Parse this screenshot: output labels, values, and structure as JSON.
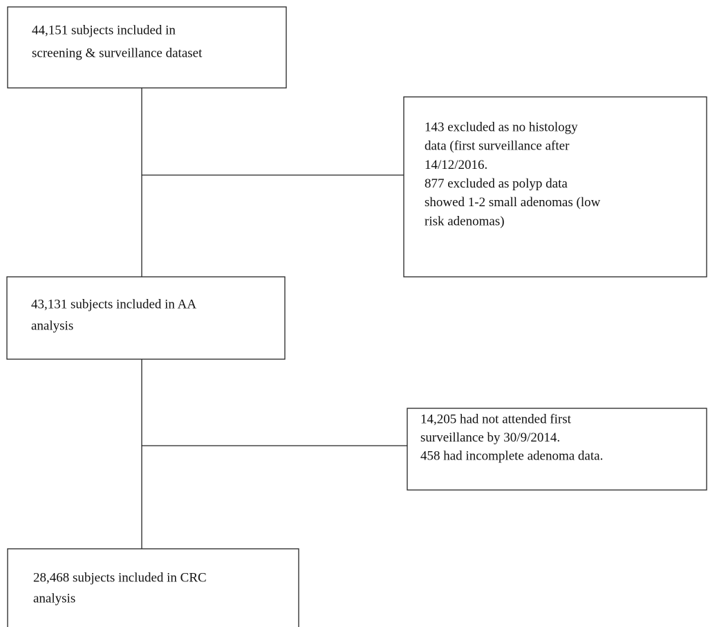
{
  "nodes": [
    {
      "lines": [
        "44,151 subjects included in",
        "screening & surveillance dataset"
      ]
    },
    {
      "lines": [
        "143 excluded as no histology",
        "data (first surveillance after",
        "14/12/2016.",
        "877 excluded as polyp data",
        "showed 1-2 small adenomas (low",
        "risk adenomas)"
      ]
    },
    {
      "lines": [
        "43,131 subjects included in AA",
        "analysis"
      ]
    },
    {
      "lines": [
        "14,205 had not attended first",
        "surveillance by 30/9/2014.",
        "458 had incomplete adenoma data."
      ]
    },
    {
      "lines": [
        "28,468 subjects included in CRC",
        "analysis"
      ]
    }
  ]
}
